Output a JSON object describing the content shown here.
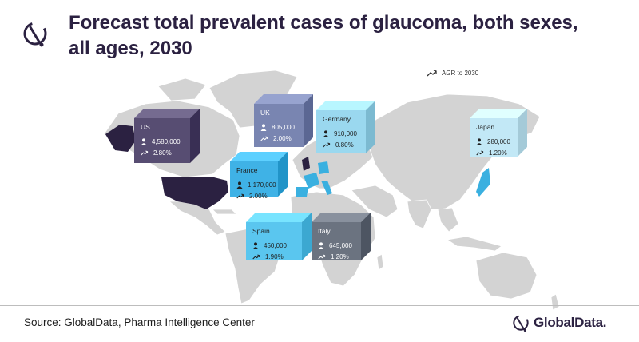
{
  "header": {
    "title_line1": "Forecast total prevalent cases of glaucoma, both sexes,",
    "title_line2": "all ages, 2030"
  },
  "legend": {
    "label": "AGR to 2030",
    "icon": "trend-up-icon"
  },
  "countries": [
    {
      "key": "us",
      "name": "US",
      "cases": "4,580,000",
      "agr": "2.80%",
      "color": "#574d72"
    },
    {
      "key": "uk",
      "name": "UK",
      "cases": "805,000",
      "agr": "2.00%",
      "color": "#7985b1"
    },
    {
      "key": "germany",
      "name": "Germany",
      "cases": "910,000",
      "agr": "0.80%",
      "color": "#9ad8ef"
    },
    {
      "key": "france",
      "name": "France",
      "cases": "1,170,000",
      "agr": "2.00%",
      "color": "#3fb2e6"
    },
    {
      "key": "spain",
      "name": "Spain",
      "cases": "450,000",
      "agr": "1.90%",
      "color": "#5ac6ef"
    },
    {
      "key": "italy",
      "name": "Italy",
      "cases": "645,000",
      "agr": "1.20%",
      "color": "#6b7380"
    },
    {
      "key": "japan",
      "name": "Japan",
      "cases": "280,000",
      "agr": "1.20%",
      "color": "#c2e8f6"
    }
  ],
  "footer": {
    "source": "Source: GlobalData, Pharma Intelligence Center",
    "logo_text": "GlobalData."
  },
  "colors": {
    "land": "#d3d3d3",
    "us_highlight": "#2b2141",
    "europe_highlight": "#3ab0e0",
    "title": "#2b2141"
  }
}
